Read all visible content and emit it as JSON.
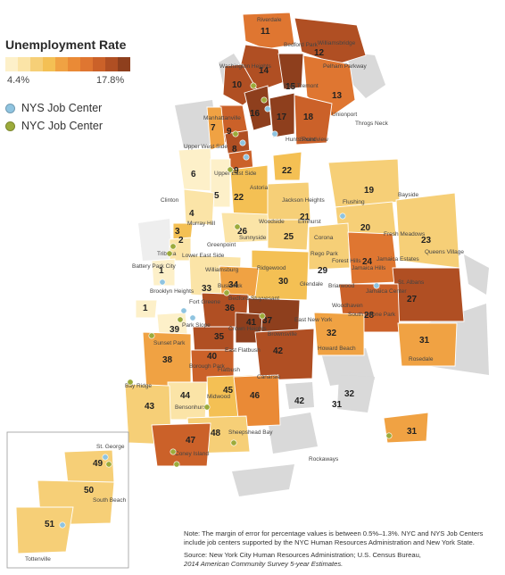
{
  "legend": {
    "title": "Unemployment Rate",
    "min_label": "4.4%",
    "max_label": "17.8%",
    "scale_colors": [
      "#fdf0c9",
      "#fbe4a7",
      "#f6cf77",
      "#f4c054",
      "#f0a243",
      "#ea8a36",
      "#df7631",
      "#cb6129",
      "#b04f23",
      "#8e3f1d"
    ],
    "centers": [
      {
        "label": "NYS Job Center",
        "color": "#8fc4e0"
      },
      {
        "label": "NYC Job Center",
        "color": "#9cab3b"
      }
    ]
  },
  "districts": [
    {
      "id": "1",
      "label": "1",
      "color": "#fdf0c9"
    },
    {
      "id": "1b",
      "label": "1",
      "color": "#fdf0c9"
    },
    {
      "id": "2",
      "label": "2",
      "color": "#fbe4a7"
    },
    {
      "id": "3",
      "label": "3",
      "color": "#f4c054"
    },
    {
      "id": "4",
      "label": "4",
      "color": "#fbe4a7"
    },
    {
      "id": "5",
      "label": "5",
      "color": "#fdf0c9"
    },
    {
      "id": "6",
      "label": "6",
      "color": "#fdf0c9"
    },
    {
      "id": "7",
      "label": "7",
      "color": "#f0a243"
    },
    {
      "id": "8",
      "label": "8",
      "color": "#b04f23"
    },
    {
      "id": "9",
      "label": "9",
      "color": "#cb6129"
    },
    {
      "id": "9b",
      "label": "9",
      "color": "#cb6129"
    },
    {
      "id": "10",
      "label": "10",
      "color": "#b04f23"
    },
    {
      "id": "11",
      "label": "11",
      "color": "#df7631"
    },
    {
      "id": "12",
      "label": "12",
      "color": "#b04f23"
    },
    {
      "id": "13",
      "label": "13",
      "color": "#df7631"
    },
    {
      "id": "14",
      "label": "14",
      "color": "#b04f23"
    },
    {
      "id": "15",
      "label": "15",
      "color": "#8e3f1d"
    },
    {
      "id": "16",
      "label": "16",
      "color": "#8e3f1d"
    },
    {
      "id": "17",
      "label": "17",
      "color": "#8e3f1d"
    },
    {
      "id": "18",
      "label": "18",
      "color": "#cb6129"
    },
    {
      "id": "19",
      "label": "19",
      "color": "#f6cf77"
    },
    {
      "id": "20",
      "label": "20",
      "color": "#f6cf77"
    },
    {
      "id": "21",
      "label": "21",
      "color": "#f6cf77"
    },
    {
      "id": "22",
      "label": "22",
      "color": "#f4c054"
    },
    {
      "id": "22b",
      "label": "22",
      "color": "#f4c054"
    },
    {
      "id": "23",
      "label": "23",
      "color": "#f6cf77"
    },
    {
      "id": "24",
      "label": "24",
      "color": "#df7631"
    },
    {
      "id": "25",
      "label": "25",
      "color": "#f6cf77"
    },
    {
      "id": "26",
      "label": "26",
      "color": "#fbe4a7"
    },
    {
      "id": "27",
      "label": "27",
      "color": "#b04f23"
    },
    {
      "id": "28",
      "label": "28",
      "color": "#cb6129"
    },
    {
      "id": "29",
      "label": "29",
      "color": "#f6cf77"
    },
    {
      "id": "30",
      "label": "30",
      "color": "#f4c054"
    },
    {
      "id": "31",
      "label": "31",
      "color": "#f0a243"
    },
    {
      "id": "31b",
      "label": "31",
      "color": "#f0a243"
    },
    {
      "id": "32",
      "label": "32",
      "color": "#f0a243"
    },
    {
      "id": "33",
      "label": "33",
      "color": "#fbe4a7"
    },
    {
      "id": "34",
      "label": "34",
      "color": "#f0a243"
    },
    {
      "id": "35",
      "label": "35",
      "color": "#b04f23"
    },
    {
      "id": "36",
      "label": "36",
      "color": "#b04f23"
    },
    {
      "id": "37",
      "label": "37",
      "color": "#8e3f1d"
    },
    {
      "id": "38",
      "label": "38",
      "color": "#f0a243"
    },
    {
      "id": "39",
      "label": "39",
      "color": "#fdf0c9"
    },
    {
      "id": "40",
      "label": "40",
      "color": "#cb6129"
    },
    {
      "id": "41",
      "label": "41",
      "color": "#8e3f1d"
    },
    {
      "id": "42",
      "label": "42",
      "color": "#b04f23"
    },
    {
      "id": "43",
      "label": "43",
      "color": "#f6cf77"
    },
    {
      "id": "44",
      "label": "44",
      "color": "#fbe4a7"
    },
    {
      "id": "45",
      "label": "45",
      "color": "#f4c054"
    },
    {
      "id": "46",
      "label": "46",
      "color": "#ea8a36"
    },
    {
      "id": "47",
      "label": "47",
      "color": "#cb6129"
    },
    {
      "id": "48",
      "label": "48",
      "color": "#f6cf77"
    },
    {
      "id": "49",
      "label": "49",
      "color": "#f6cf77"
    },
    {
      "id": "50",
      "label": "50",
      "color": "#f6cf77"
    },
    {
      "id": "51",
      "label": "51",
      "color": "#f6cf77"
    }
  ],
  "place_labels": [
    {
      "id": "riverdale",
      "text": "Riverdale"
    },
    {
      "id": "bedford-park",
      "text": "Bedford Park"
    },
    {
      "id": "williamsbridge",
      "text": "Williamsbridge"
    },
    {
      "id": "pelham-parkway",
      "text": "Pelham Parkway"
    },
    {
      "id": "washington-heights",
      "text": "Washington Heights"
    },
    {
      "id": "east-tremont",
      "text": "East Tremont"
    },
    {
      "id": "unionport",
      "text": "Unionport"
    },
    {
      "id": "throgs-neck",
      "text": "Throgs Neck"
    },
    {
      "id": "manhattanville",
      "text": "Manhattanville"
    },
    {
      "id": "soundview",
      "text": "Soundview"
    },
    {
      "id": "hunts-point",
      "text": "Hunts Point"
    },
    {
      "id": "upper-west-side",
      "text": "Upper West Side"
    },
    {
      "id": "upper-east-side",
      "text": "Upper East Side"
    },
    {
      "id": "clinton",
      "text": "Clinton"
    },
    {
      "id": "murray-hill",
      "text": "Murray Hill"
    },
    {
      "id": "astoria",
      "text": "Astoria"
    },
    {
      "id": "jackson-heights",
      "text": "Jackson Heights"
    },
    {
      "id": "elmhurst",
      "text": "Elmhurst"
    },
    {
      "id": "flushing",
      "text": "Flushing"
    },
    {
      "id": "bayside",
      "text": "Bayside"
    },
    {
      "id": "woodside",
      "text": "Woodside"
    },
    {
      "id": "sunnyside",
      "text": "Sunnyside"
    },
    {
      "id": "corona",
      "text": "Corona"
    },
    {
      "id": "fresh-meadows",
      "text": "Fresh Meadows"
    },
    {
      "id": "queens-village",
      "text": "Queens Village"
    },
    {
      "id": "tribeca",
      "text": "Tribeca"
    },
    {
      "id": "lower-east-side",
      "text": "Lower East Side"
    },
    {
      "id": "greenpoint",
      "text": "Greenpoint"
    },
    {
      "id": "rego-park",
      "text": "Rego Park"
    },
    {
      "id": "forest-hills",
      "text": "Forest Hills"
    },
    {
      "id": "jamaica-estates",
      "text": "Jamaica Estates"
    },
    {
      "id": "jamaica-hills",
      "text": "Jamaica Hills"
    },
    {
      "id": "ridgewood",
      "text": "Ridgewood"
    },
    {
      "id": "battery-park-city",
      "text": "Battery Park City"
    },
    {
      "id": "williamsburg",
      "text": "Williamsburg"
    },
    {
      "id": "glendale",
      "text": "Glendale"
    },
    {
      "id": "briarwood",
      "text": "Briarwood"
    },
    {
      "id": "jamaica-center",
      "text": "Jamaica Center"
    },
    {
      "id": "st-albans",
      "text": "St. Albans"
    },
    {
      "id": "brooklyn-heights",
      "text": "Brooklyn Heights"
    },
    {
      "id": "bushwick",
      "text": "Bushwick"
    },
    {
      "id": "bedford-stuyvesant",
      "text": "Bedford-Stuyvesant"
    },
    {
      "id": "fort-greene",
      "text": "Fort Greene"
    },
    {
      "id": "woodhaven",
      "text": "Woodhaven"
    },
    {
      "id": "south-ozone-park",
      "text": "South Ozone Park"
    },
    {
      "id": "park-slope",
      "text": "Park Slope"
    },
    {
      "id": "crown-heights",
      "text": "Crown Heights"
    },
    {
      "id": "east-new-york",
      "text": "East New York"
    },
    {
      "id": "brownsville",
      "text": "Brownsville"
    },
    {
      "id": "sunset-park",
      "text": "Sunset Park"
    },
    {
      "id": "howard-beach",
      "text": "Howard Beach"
    },
    {
      "id": "east-flatbush",
      "text": "East Flatbush"
    },
    {
      "id": "rosedale",
      "text": "Rosedale"
    },
    {
      "id": "borough-park",
      "text": "Borough Park"
    },
    {
      "id": "flatbush",
      "text": "Flatbush"
    },
    {
      "id": "bay-ridge",
      "text": "Bay Ridge"
    },
    {
      "id": "canarsie",
      "text": "Canarsie"
    },
    {
      "id": "bensonhurst",
      "text": "Bensonhurst"
    },
    {
      "id": "midwood",
      "text": "Midwood"
    },
    {
      "id": "sheepshead-bay",
      "text": "Sheepshead Bay"
    },
    {
      "id": "coney-island",
      "text": "Coney Island"
    },
    {
      "id": "rockaways",
      "text": "Rockaways"
    },
    {
      "id": "st-george",
      "text": "St. George"
    },
    {
      "id": "south-beach",
      "text": "South Beach"
    },
    {
      "id": "tottenville",
      "text": "Tottenville"
    }
  ],
  "note": {
    "text": "Note: The margin of error for percentage values is between 0.5%–1.3%. NYC and NYS Job Centers include job centers supported by the NYC Human Resources Administration and New York State.",
    "source_prefix": "Source: New York City Human Resources Administration; U.S. Census Bureau,",
    "source_italic": "2014 American Community Survey 5-year Estimates."
  }
}
